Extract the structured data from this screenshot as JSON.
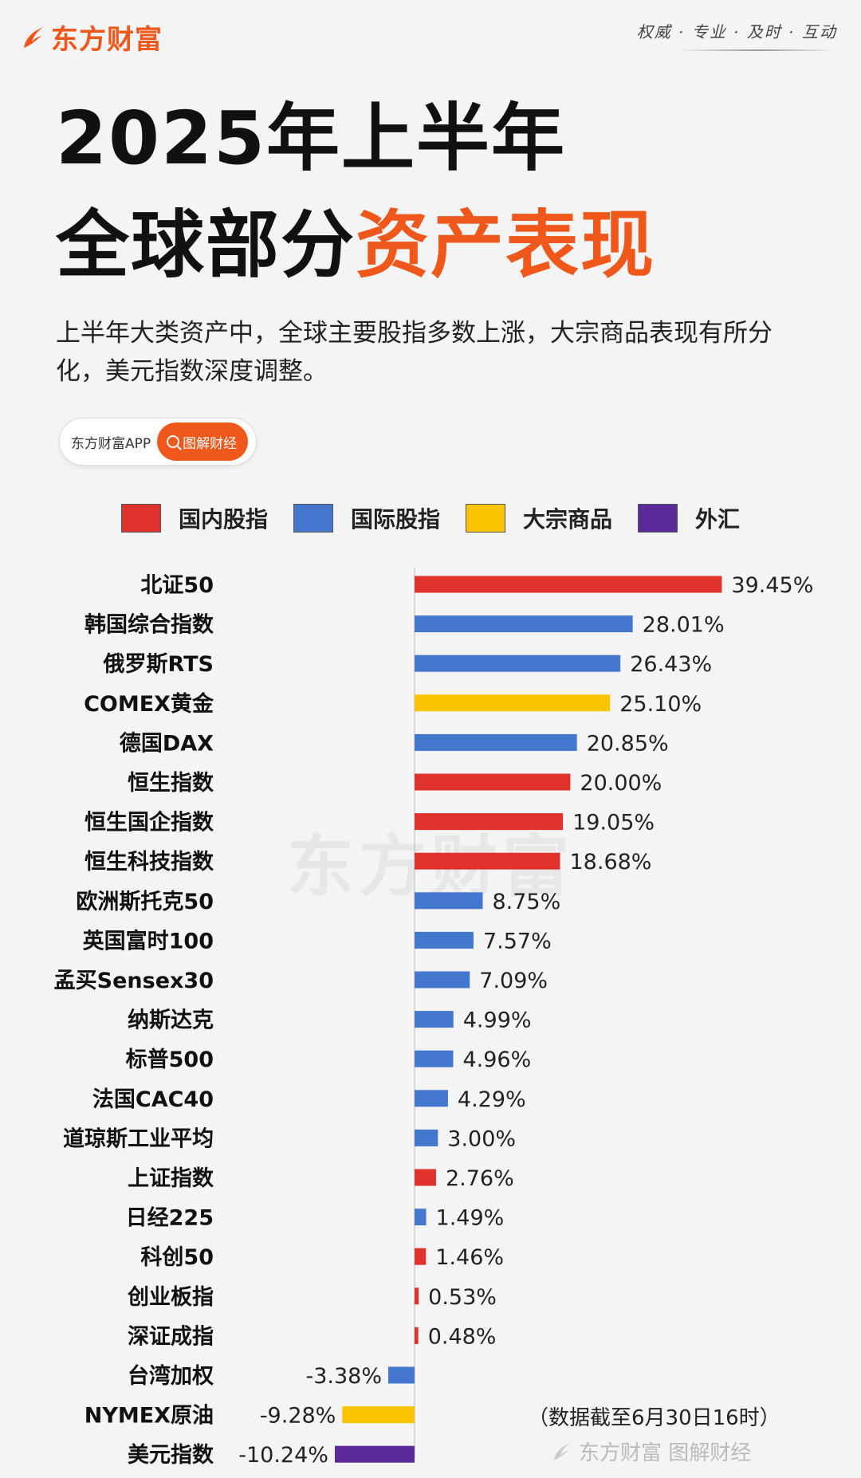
{
  "brand": {
    "name": "东方财富",
    "slogan": "权威 · 专业 · 及时 · 互动"
  },
  "title": {
    "line1": "2025年上半年",
    "line2_plain": "全球部分",
    "line2_highlight": "资产表现"
  },
  "description": "上半年大类资产中，全球主要股指多数上涨，大宗商品表现有所分化，美元指数深度调整。",
  "pill": {
    "app": "东方财富APP",
    "button": "图解财经"
  },
  "legend": [
    {
      "label": "国内股指",
      "color": "#e0322d"
    },
    {
      "label": "国际股指",
      "color": "#4677cf"
    },
    {
      "label": "大宗商品",
      "color": "#fbc400"
    },
    {
      "label": "外汇",
      "color": "#5a2a9a"
    }
  ],
  "colors": {
    "domestic": "#e0322d",
    "international": "#4677cf",
    "commodity": "#fbc400",
    "fx": "#5a2a9a",
    "accent": "#f0581b"
  },
  "note": "（数据截至6月30日16时）",
  "footer": "东方财富 图解财经",
  "watermark": "东方财富",
  "chart_data": {
    "type": "bar",
    "orientation": "horizontal",
    "title": "2025年上半年全球部分资产表现",
    "unit": "%",
    "categories": [
      "北证50",
      "韩国综合指数",
      "俄罗斯RTS",
      "COMEX黄金",
      "德国DAX",
      "恒生指数",
      "恒生国企指数",
      "恒生科技指数",
      "欧洲斯托克50",
      "英国富时100",
      "孟买Sensex30",
      "纳斯达克",
      "标普500",
      "法国CAC40",
      "道琼斯工业平均",
      "上证指数",
      "日经225",
      "科创50",
      "创业板指",
      "深证成指",
      "台湾加权",
      "NYMEX原油",
      "美元指数"
    ],
    "values": [
      39.45,
      28.01,
      26.43,
      25.1,
      20.85,
      20.0,
      19.05,
      18.68,
      8.75,
      7.57,
      7.09,
      4.99,
      4.96,
      4.29,
      3.0,
      2.76,
      1.49,
      1.46,
      0.53,
      0.48,
      -3.38,
      -9.28,
      -10.24
    ],
    "value_labels": [
      "39.45%",
      "28.01%",
      "26.43%",
      "25.10%",
      "20.85%",
      "20.00%",
      "19.05%",
      "18.68%",
      "8.75%",
      "7.57%",
      "7.09%",
      "4.99%",
      "4.96%",
      "4.29%",
      "3.00%",
      "2.76%",
      "1.49%",
      "1.46%",
      "0.53%",
      "0.48%",
      "-3.38%",
      "-9.28%",
      "-10.24%"
    ],
    "groups": [
      "国内股指",
      "国际股指",
      "国际股指",
      "大宗商品",
      "国际股指",
      "国内股指",
      "国内股指",
      "国内股指",
      "国际股指",
      "国际股指",
      "国际股指",
      "国际股指",
      "国际股指",
      "国际股指",
      "国际股指",
      "国内股指",
      "国际股指",
      "国内股指",
      "国内股指",
      "国内股指",
      "国际股指",
      "大宗商品",
      "外汇"
    ],
    "legend_position": "top",
    "grid": false
  }
}
